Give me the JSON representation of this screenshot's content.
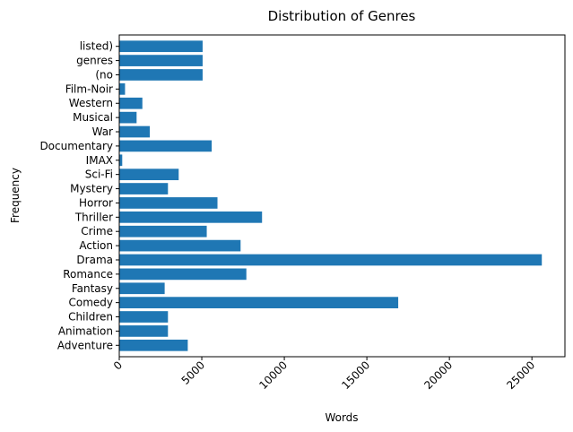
{
  "chart_data": {
    "type": "bar",
    "orientation": "horizontal",
    "title": "Distribution of Genres",
    "xlabel": "Words",
    "ylabel": "Frequency",
    "categories": [
      "Adventure",
      "Animation",
      "Children",
      "Comedy",
      "Fantasy",
      "Romance",
      "Drama",
      "Action",
      "Crime",
      "Thriller",
      "Horror",
      "Mystery",
      "Sci-Fi",
      "IMAX",
      "Documentary",
      "War",
      "Musical",
      "Western",
      "Film-Noir",
      "(no",
      "genres",
      "listed)"
    ],
    "values": [
      4150,
      2950,
      2950,
      16900,
      2750,
      7700,
      25600,
      7350,
      5300,
      8650,
      5950,
      2950,
      3600,
      180,
      5600,
      1850,
      1050,
      1400,
      350,
      5050,
      5050,
      5050
    ],
    "xlim": [
      0,
      27000
    ],
    "xticks": [
      "0",
      "5000",
      "10000",
      "15000",
      "20000",
      "25000"
    ],
    "xtick_rotation": 45,
    "bar_color": "#1f77b4",
    "grid": false
  }
}
